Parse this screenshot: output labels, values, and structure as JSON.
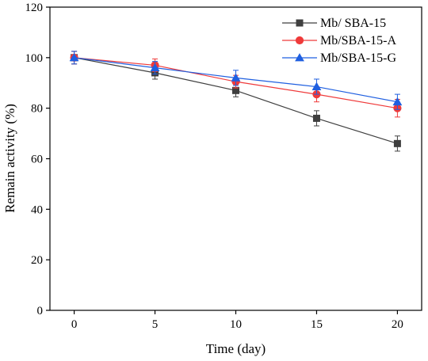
{
  "chart_data": {
    "type": "line",
    "title": "",
    "xlabel": "Time (day)",
    "ylabel": "Remain activity (%)",
    "xlim": [
      -1.5,
      21.5
    ],
    "ylim": [
      0,
      120
    ],
    "xticks": [
      0,
      5,
      10,
      15,
      20
    ],
    "yticks": [
      0,
      20,
      40,
      60,
      80,
      100,
      120
    ],
    "grid": false,
    "legend_position": "top-right",
    "x": [
      0,
      5,
      10,
      15,
      20
    ],
    "series": [
      {
        "name": "Mb/ SBA-15",
        "values": [
          100,
          94,
          87,
          76,
          66
        ],
        "errors": [
          2.5,
          2.5,
          2.5,
          3,
          3
        ],
        "color": "#3f3f3f",
        "marker": "square"
      },
      {
        "name": "Mb/SBA-15-A",
        "values": [
          100,
          97,
          90.5,
          85.5,
          80
        ],
        "errors": [
          2.5,
          2.5,
          2.5,
          3,
          3.5
        ],
        "color": "#ef3a3a",
        "marker": "circle"
      },
      {
        "name": "Mb/SBA-15-G",
        "values": [
          100,
          96,
          92,
          88.5,
          82.5
        ],
        "errors": [
          2.5,
          2.5,
          3,
          3,
          3
        ],
        "color": "#1f5fe0",
        "marker": "triangle"
      }
    ]
  }
}
